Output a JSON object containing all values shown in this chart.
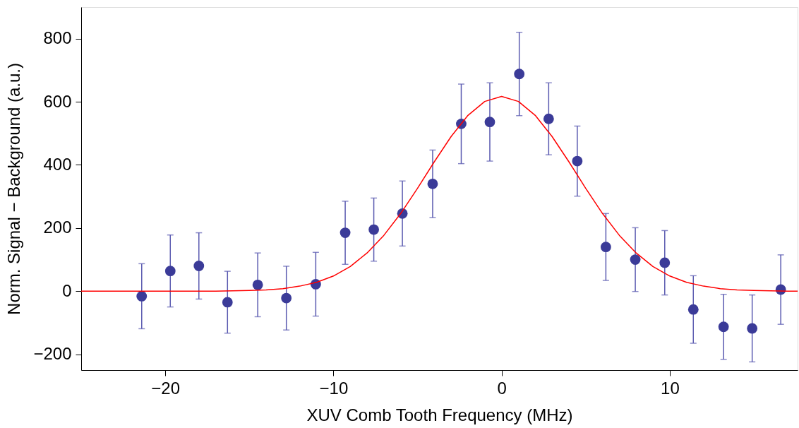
{
  "chart_data": {
    "type": "scatter",
    "xlabel": "XUV Comb Tooth Frequency (MHz)",
    "ylabel": "Norm. Signal − Background (a.u.)",
    "xlim": [
      -25,
      17.6
    ],
    "ylim": [
      -250,
      900
    ],
    "xticks": [
      -20,
      -10,
      0,
      10
    ],
    "yticks": [
      -200,
      0,
      200,
      400,
      600,
      800
    ],
    "grid": false,
    "series": [
      {
        "marker": "circle",
        "color": "#3b3b98",
        "x": [
          -21.4,
          -19.7,
          -18.0,
          -16.3,
          -14.5,
          -12.8,
          -11.05,
          -9.3,
          -7.6,
          -5.9,
          -4.1,
          -2.4,
          -0.7,
          1.05,
          2.8,
          4.5,
          6.2,
          7.95,
          9.7,
          11.4,
          13.2,
          14.9,
          16.6
        ],
        "values": [
          -16,
          64,
          80,
          -35,
          20,
          -22,
          22,
          185,
          195,
          246,
          340,
          530,
          536,
          688,
          546,
          412,
          140,
          100,
          90,
          -58,
          -113,
          -118,
          5
        ],
        "errors": [
          103,
          114,
          105,
          98,
          101,
          101,
          101,
          100,
          100,
          103,
          107,
          126,
          124,
          132,
          114,
          111,
          106,
          101,
          102,
          107,
          103,
          106,
          110
        ]
      },
      {
        "type": "line",
        "color": "#ff0000",
        "line_style": "solid",
        "x": [
          -25,
          -17,
          -16,
          -15,
          -14,
          -13,
          -12,
          -11,
          -10,
          -9,
          -8,
          -7,
          -6,
          -5,
          -4,
          -3,
          -2,
          -1,
          0,
          1,
          2,
          3,
          4,
          5,
          6,
          7,
          8,
          9,
          10,
          11,
          12,
          13,
          14,
          15,
          16,
          17,
          17.6
        ],
        "values": [
          0,
          0,
          1,
          2,
          4,
          8,
          16,
          28,
          48,
          78,
          121,
          177,
          246,
          326,
          410,
          490,
          557,
          601,
          617,
          601,
          557,
          490,
          410,
          326,
          246,
          177,
          121,
          78,
          48,
          28,
          16,
          8,
          4,
          2,
          1,
          0,
          0
        ]
      }
    ]
  }
}
